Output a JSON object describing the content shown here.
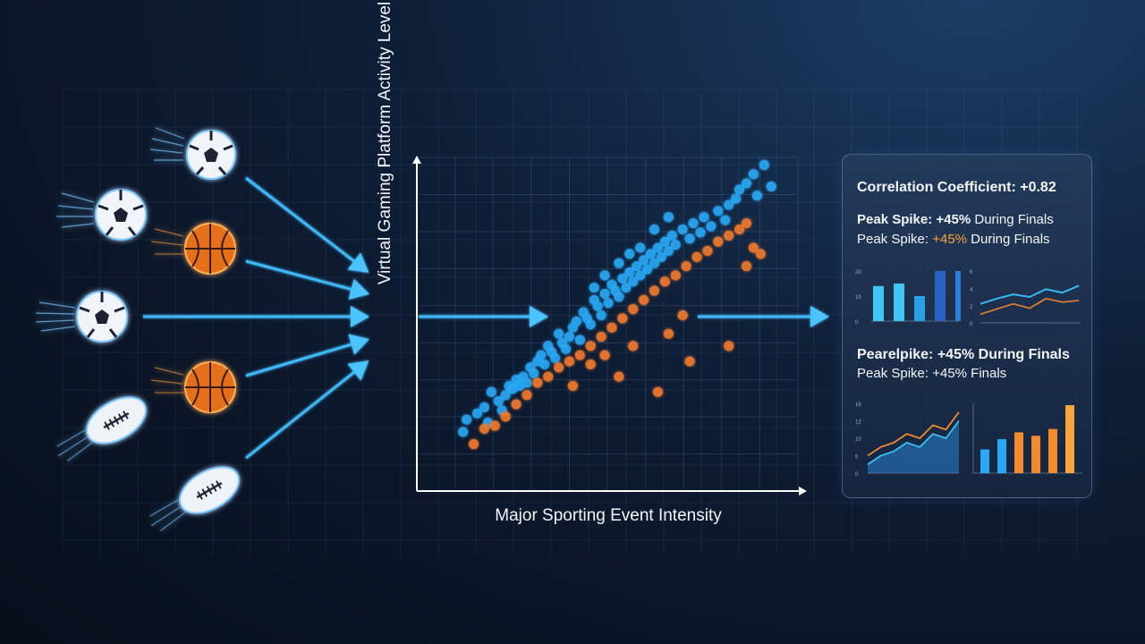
{
  "chart_data": {
    "type": "scatter",
    "xlabel": "Major Sporting Event Intensity",
    "ylabel": "Virtual Gaming Platform Activity Level",
    "xlim": [
      0,
      100
    ],
    "ylim": [
      0,
      100
    ],
    "grid": true,
    "series": [
      {
        "color": "#2aa8f5",
        "points": [
          [
            8,
            12
          ],
          [
            9,
            16
          ],
          [
            12,
            18
          ],
          [
            14,
            20
          ],
          [
            15,
            15
          ],
          [
            16,
            25
          ],
          [
            18,
            22
          ],
          [
            19,
            19
          ],
          [
            20,
            24
          ],
          [
            21,
            27
          ],
          [
            22,
            26
          ],
          [
            23,
            29
          ],
          [
            24,
            27
          ],
          [
            25,
            30
          ],
          [
            26,
            28
          ],
          [
            27,
            33
          ],
          [
            28,
            31
          ],
          [
            29,
            35
          ],
          [
            30,
            37
          ],
          [
            31,
            34
          ],
          [
            32,
            40
          ],
          [
            33,
            38
          ],
          [
            34,
            36
          ],
          [
            35,
            44
          ],
          [
            36,
            41
          ],
          [
            37,
            39
          ],
          [
            38,
            43
          ],
          [
            39,
            46
          ],
          [
            40,
            48
          ],
          [
            41,
            42
          ],
          [
            42,
            51
          ],
          [
            43,
            49
          ],
          [
            44,
            47
          ],
          [
            45,
            55
          ],
          [
            46,
            53
          ],
          [
            47,
            50
          ],
          [
            48,
            57
          ],
          [
            49,
            54
          ],
          [
            50,
            60
          ],
          [
            51,
            58
          ],
          [
            52,
            56
          ],
          [
            53,
            62
          ],
          [
            54,
            59
          ],
          [
            55,
            64
          ],
          [
            56,
            61
          ],
          [
            57,
            66
          ],
          [
            58,
            63
          ],
          [
            59,
            68
          ],
          [
            60,
            65
          ],
          [
            61,
            70
          ],
          [
            62,
            67
          ],
          [
            63,
            72
          ],
          [
            64,
            69
          ],
          [
            65,
            74
          ],
          [
            66,
            71
          ],
          [
            67,
            76
          ],
          [
            68,
            73
          ],
          [
            70,
            78
          ],
          [
            72,
            75
          ],
          [
            73,
            80
          ],
          [
            75,
            77
          ],
          [
            76,
            82
          ],
          [
            78,
            79
          ],
          [
            80,
            84
          ],
          [
            82,
            81
          ],
          [
            83,
            86
          ],
          [
            85,
            88
          ],
          [
            86,
            91
          ],
          [
            88,
            93
          ],
          [
            90,
            96
          ],
          [
            91,
            89
          ],
          [
            93,
            99
          ],
          [
            95,
            92
          ],
          [
            52,
            67
          ],
          [
            48,
            63
          ],
          [
            45,
            59
          ],
          [
            58,
            72
          ],
          [
            62,
            78
          ],
          [
            55,
            70
          ],
          [
            66,
            82
          ]
        ]
      },
      {
        "color": "#f07a2e",
        "points": [
          [
            11,
            8
          ],
          [
            14,
            13
          ],
          [
            17,
            14
          ],
          [
            20,
            17
          ],
          [
            23,
            21
          ],
          [
            26,
            24
          ],
          [
            29,
            28
          ],
          [
            32,
            30
          ],
          [
            35,
            33
          ],
          [
            38,
            35
          ],
          [
            41,
            37
          ],
          [
            44,
            40
          ],
          [
            47,
            43
          ],
          [
            50,
            46
          ],
          [
            53,
            49
          ],
          [
            56,
            52
          ],
          [
            59,
            55
          ],
          [
            62,
            58
          ],
          [
            65,
            61
          ],
          [
            68,
            63
          ],
          [
            71,
            66
          ],
          [
            74,
            69
          ],
          [
            77,
            71
          ],
          [
            80,
            74
          ],
          [
            83,
            76
          ],
          [
            86,
            78
          ],
          [
            88,
            80
          ],
          [
            90,
            72
          ],
          [
            92,
            70
          ],
          [
            88,
            66
          ],
          [
            52,
            30
          ],
          [
            63,
            25
          ],
          [
            72,
            35
          ],
          [
            83,
            40
          ],
          [
            70,
            50
          ],
          [
            66,
            44
          ],
          [
            56,
            40
          ],
          [
            44,
            34
          ],
          [
            39,
            27
          ],
          [
            48,
            37
          ]
        ]
      }
    ]
  },
  "panel": {
    "correlation": "Correlation Coefficient: +0.82",
    "line1_a": "Peak Spike: ",
    "line1_b": "+45%",
    "line1_c": " During Finals",
    "line2_a": "Peak Spike: ",
    "line2_b": "+45%",
    "line2_c": " During Finals",
    "line3": "Pearelpike: +45% During Finals",
    "line4": "Peak Spike: +45% Finals",
    "mini1": {
      "ticks": [
        "20",
        "10",
        "0"
      ],
      "values": [
        14,
        15,
        10,
        20,
        20
      ],
      "colors": [
        "#3ec7f2",
        "#3ec7f2",
        "#2aa0e8",
        "#2a62c4",
        "#2a7fd8"
      ]
    },
    "mini2": {
      "ticks": [
        "6",
        "4",
        "2",
        "0"
      ],
      "line_a": [
        2.2,
        2.8,
        3.3,
        3.0,
        3.9,
        3.5,
        4.3
      ],
      "line_b": [
        1.0,
        1.6,
        2.2,
        1.7,
        2.8,
        2.4,
        2.6
      ]
    },
    "mini3": {
      "ticks": [
        "16",
        "12",
        "10",
        "5",
        "0"
      ],
      "line_a": [
        4,
        6,
        7,
        9,
        8,
        11,
        10,
        14
      ],
      "line_b": [
        2,
        4,
        5,
        7,
        6,
        9,
        8,
        12
      ]
    },
    "mini4": {
      "values": [
        7,
        10,
        12,
        11,
        13,
        20
      ],
      "colors": [
        "#2aa8f5",
        "#2aa8f5",
        "#f28a2e",
        "#f28a2e",
        "#f28a2e",
        "#f5a53a"
      ]
    }
  },
  "icons": [
    "soccer-ball-icon",
    "basketball-icon",
    "american-football-icon",
    "flow-arrow-icon"
  ]
}
